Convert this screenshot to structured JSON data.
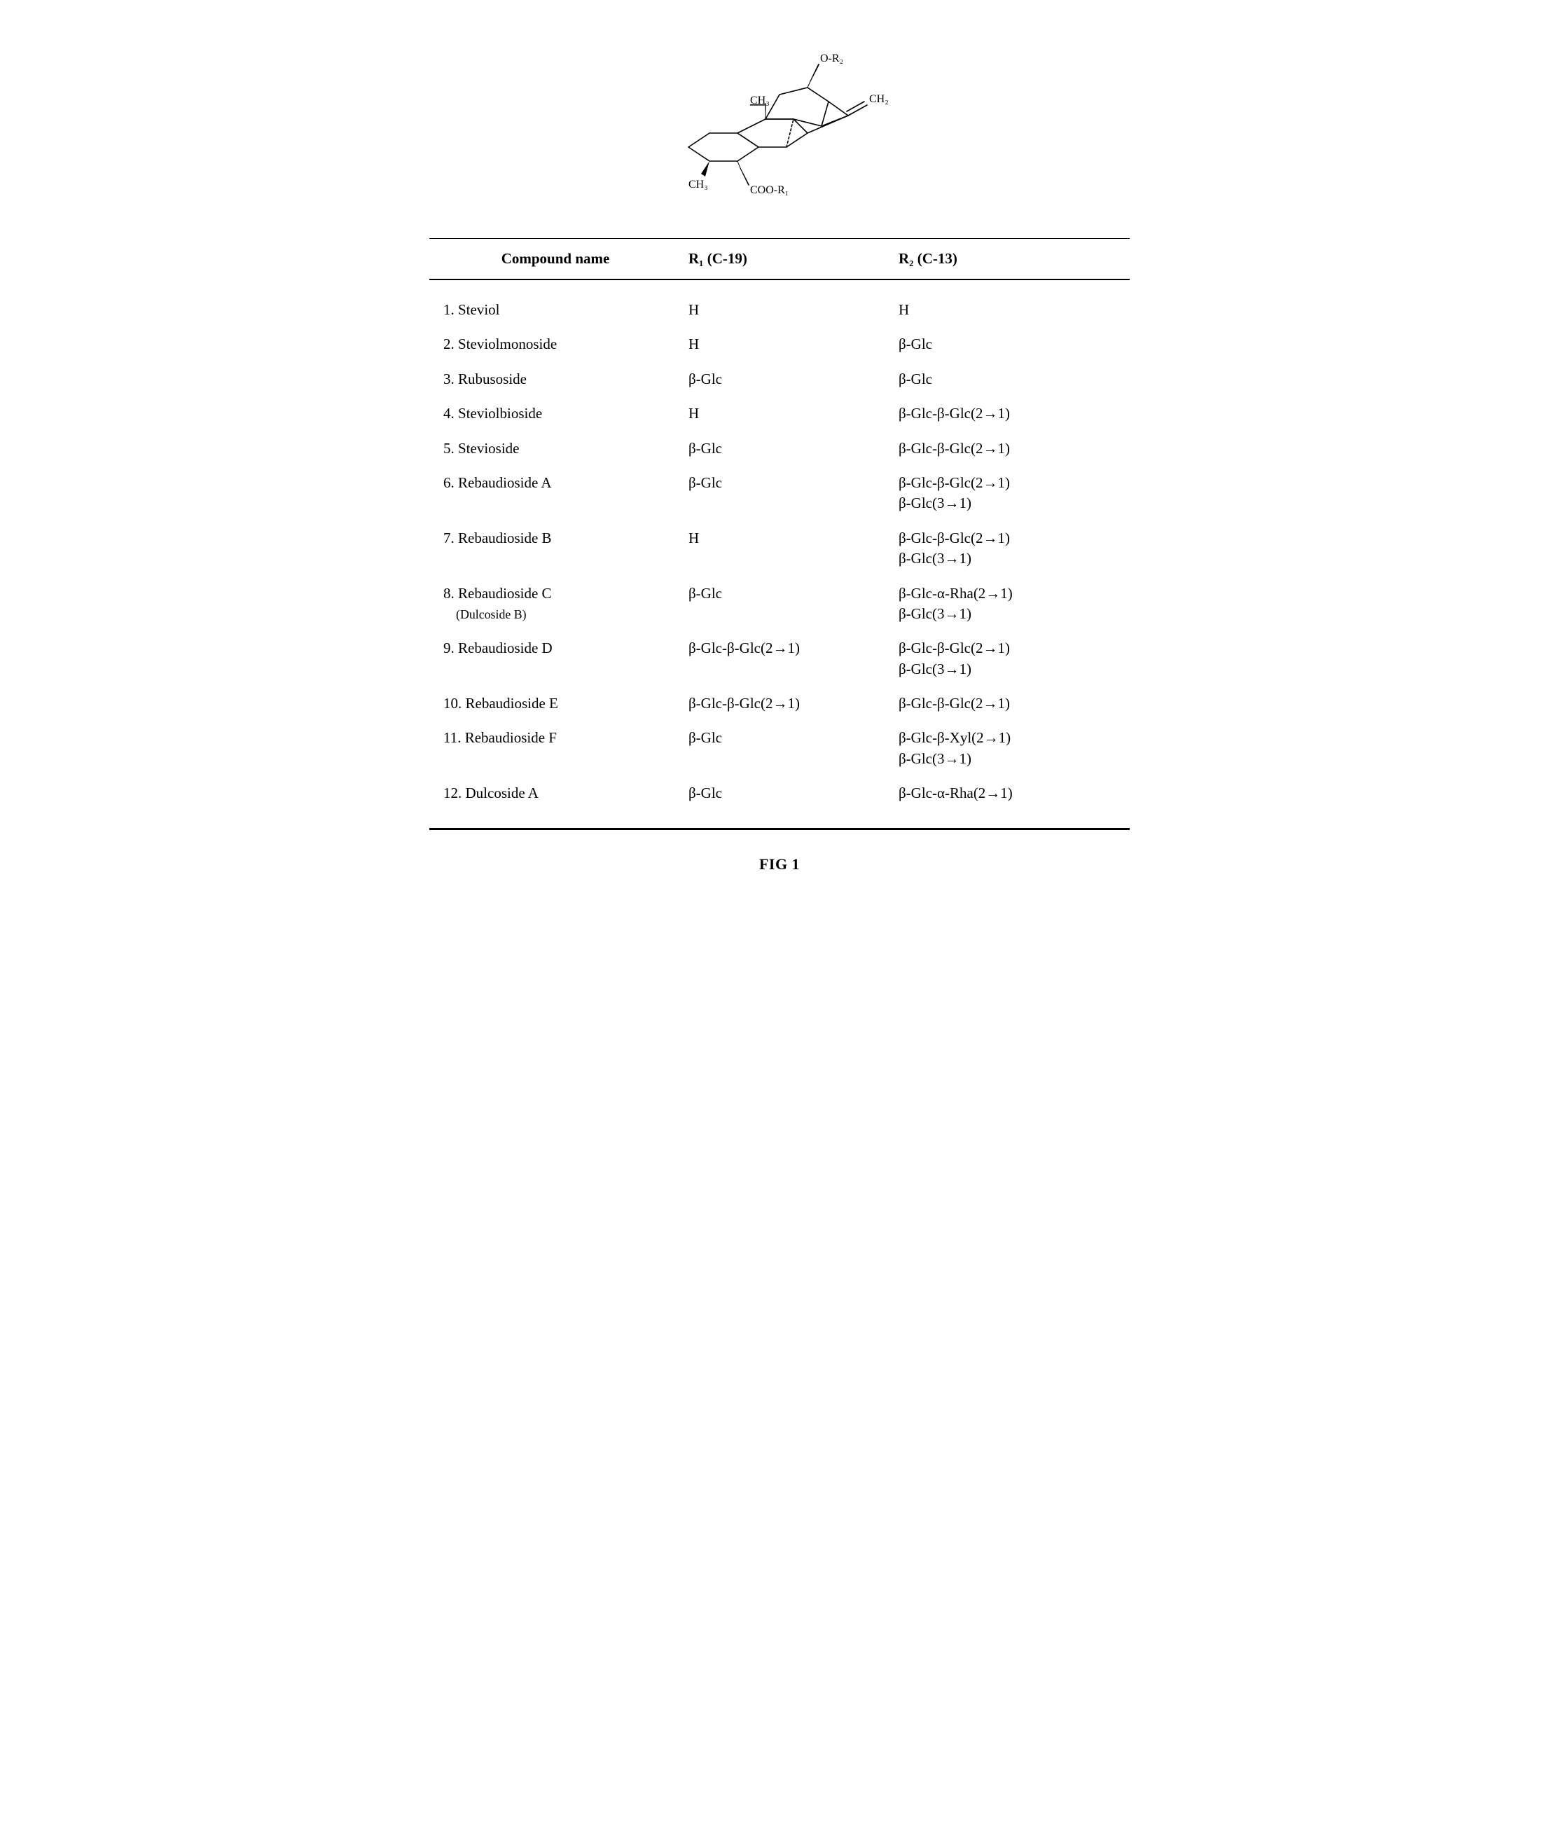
{
  "figure": {
    "label_O_R2": "O-R₂",
    "label_CH3_top": "CH₃",
    "label_CH2": "CH₂",
    "label_CH3_bottom": "CH₃",
    "label_COO_R1": "COO-R₁",
    "caption": "FIG 1",
    "stroke_color": "#000000",
    "stroke_width": 1.6
  },
  "table": {
    "headers": {
      "name": "Compound name",
      "r1": "R₁ (C-19)",
      "r2": "R₂ (C-13)"
    },
    "rows": [
      {
        "name": "1. Steviol",
        "sub": "",
        "r1": "H",
        "r2_a": "H",
        "r2_b": ""
      },
      {
        "name": "2. Steviolmonoside",
        "sub": "",
        "r1": "H",
        "r2_a": "β-Glc",
        "r2_b": ""
      },
      {
        "name": "3. Rubusoside",
        "sub": "",
        "r1": "β-Glc",
        "r2_a": "β-Glc",
        "r2_b": ""
      },
      {
        "name": "4. Steviolbioside",
        "sub": "",
        "r1": "H",
        "r2_a": "β-Glc-β-Glc(2→1)",
        "r2_b": ""
      },
      {
        "name": "5. Stevioside",
        "sub": "",
        "r1": "β-Glc",
        "r2_a": "β-Glc-β-Glc(2→1)",
        "r2_b": ""
      },
      {
        "name": "6. Rebaudioside A",
        "sub": "",
        "r1": "β-Glc",
        "r2_a": "β-Glc-β-Glc(2→1)",
        "r2_b": "β-Glc(3→1)"
      },
      {
        "name": "7. Rebaudioside B",
        "sub": "",
        "r1": "H",
        "r2_a": "β-Glc-β-Glc(2→1)",
        "r2_b": "β-Glc(3→1)"
      },
      {
        "name": "8. Rebaudioside C",
        "sub": "(Dulcoside B)",
        "r1": "β-Glc",
        "r2_a": "β-Glc-α-Rha(2→1)",
        "r2_b": "β-Glc(3→1)"
      },
      {
        "name": "9. Rebaudioside D",
        "sub": "",
        "r1": "β-Glc-β-Glc(2→1)",
        "r2_a": "β-Glc-β-Glc(2→1)",
        "r2_b": "β-Glc(3→1)"
      },
      {
        "name": "10. Rebaudioside E",
        "sub": "",
        "r1": "β-Glc-β-Glc(2→1)",
        "r2_a": "β-Glc-β-Glc(2→1)",
        "r2_b": ""
      },
      {
        "name": "11. Rebaudioside F",
        "sub": "",
        "r1": "β-Glc",
        "r2_a": "β-Glc-β-Xyl(2→1)",
        "r2_b": "β-Glc(3→1)"
      },
      {
        "name": "12. Dulcoside A",
        "sub": "",
        "r1": "β-Glc",
        "r2_a": "β-Glc-α-Rha(2→1)",
        "r2_b": ""
      }
    ],
    "border_color": "#000000",
    "font_size_pt": 16
  }
}
